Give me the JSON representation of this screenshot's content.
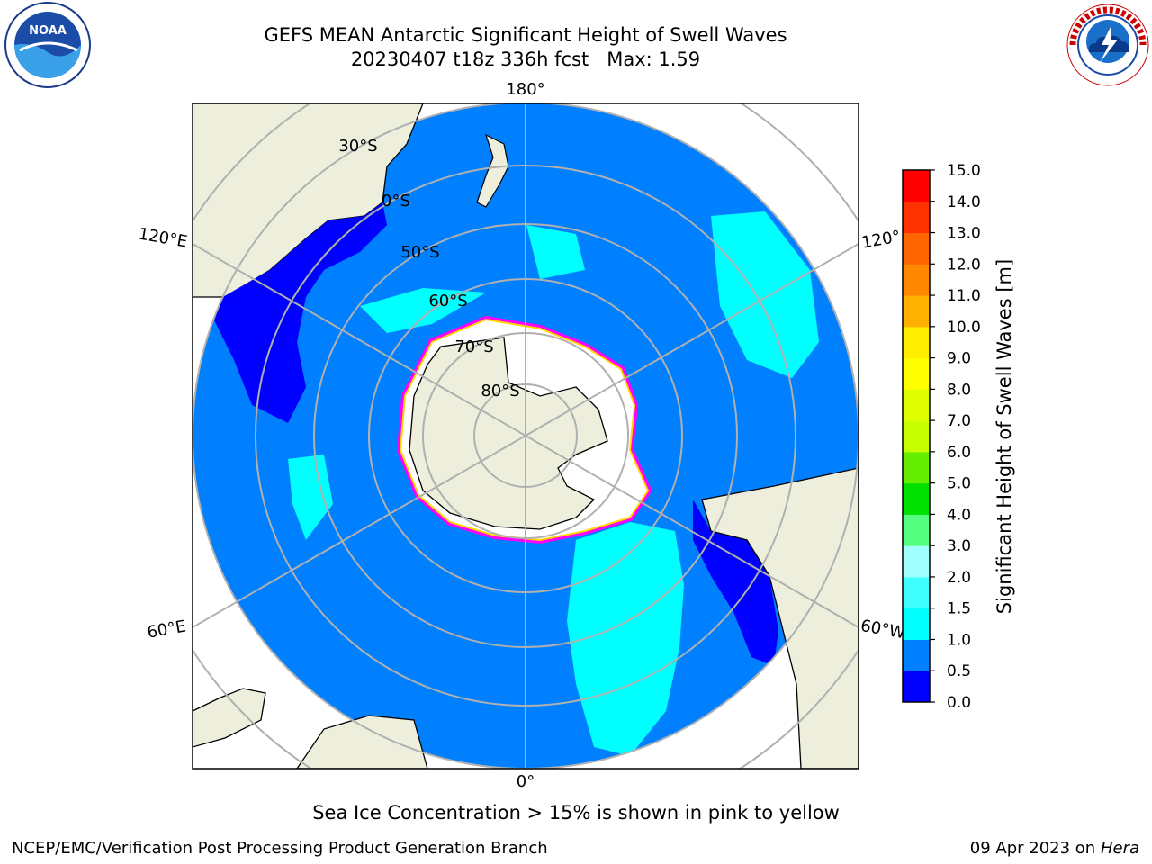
{
  "title": {
    "line1": "GEFS MEAN Antarctic Significant Height of Swell Waves",
    "line2": "20230407 t18z 336h fcst   Max: 1.59"
  },
  "logos": {
    "left": "NOAA",
    "left_ring_text": "NATIONAL OCEANIC AND ATMOSPHERIC ADMINISTRATION · U.S. DEPARTMENT OF COMMERCE",
    "right_ring_text": "NATIONAL WEATHER SERVICE"
  },
  "map": {
    "projection": "south-polar-stereographic",
    "longitude_labels": [
      "180°",
      "120°E",
      "120°",
      "60°E",
      "60°W",
      "0°"
    ],
    "latitude_labels": [
      "30°S",
      "0°S",
      "50°S",
      "60°S",
      "70°S",
      "80°S"
    ],
    "colors": {
      "ocean": "#0080ff",
      "land": "#eeeedd",
      "low_swell": "#0000ff",
      "mid_swell": "#00ffff",
      "ice_edge": "#ff00ff",
      "ice_edge_yellow": "#ffd700",
      "grid": "#b0b0b0"
    }
  },
  "colorbar": {
    "label": "Significant Height of Swell Waves [m]",
    "ticks": [
      "15.0",
      "14.0",
      "13.0",
      "12.0",
      "11.0",
      "10.0",
      "9.0",
      "8.0",
      "7.0",
      "6.0",
      "5.0",
      "4.0",
      "3.0",
      "2.0",
      "1.5",
      "1.0",
      "0.5",
      "0.0"
    ],
    "bins": [
      {
        "from": 0.0,
        "to": 0.5,
        "color": "#0000ff"
      },
      {
        "from": 0.5,
        "to": 1.0,
        "color": "#0080ff"
      },
      {
        "from": 1.0,
        "to": 1.5,
        "color": "#00ffff"
      },
      {
        "from": 1.5,
        "to": 2.0,
        "color": "#40ffff"
      },
      {
        "from": 2.0,
        "to": 3.0,
        "color": "#a0ffff"
      },
      {
        "from": 3.0,
        "to": 4.0,
        "color": "#55ff80"
      },
      {
        "from": 4.0,
        "to": 5.0,
        "color": "#00e000"
      },
      {
        "from": 5.0,
        "to": 6.0,
        "color": "#66ee00"
      },
      {
        "from": 6.0,
        "to": 7.0,
        "color": "#c8ff00"
      },
      {
        "from": 7.0,
        "to": 8.0,
        "color": "#e0ff00"
      },
      {
        "from": 8.0,
        "to": 9.0,
        "color": "#ffff00"
      },
      {
        "from": 9.0,
        "to": 10.0,
        "color": "#ffee00"
      },
      {
        "from": 10.0,
        "to": 11.0,
        "color": "#ffb000"
      },
      {
        "from": 11.0,
        "to": 12.0,
        "color": "#ff8800"
      },
      {
        "from": 12.0,
        "to": 13.0,
        "color": "#ff6600"
      },
      {
        "from": 13.0,
        "to": 14.0,
        "color": "#ff3300"
      },
      {
        "from": 14.0,
        "to": 15.0,
        "color": "#ff0000"
      }
    ]
  },
  "footnote": "Sea Ice Concentration > 15% is shown in pink to yellow",
  "credit_left": "NCEP/EMC/Verification Post Processing Product Generation Branch",
  "credit_right_date": "09 Apr 2023 on",
  "credit_right_host": "Hera"
}
